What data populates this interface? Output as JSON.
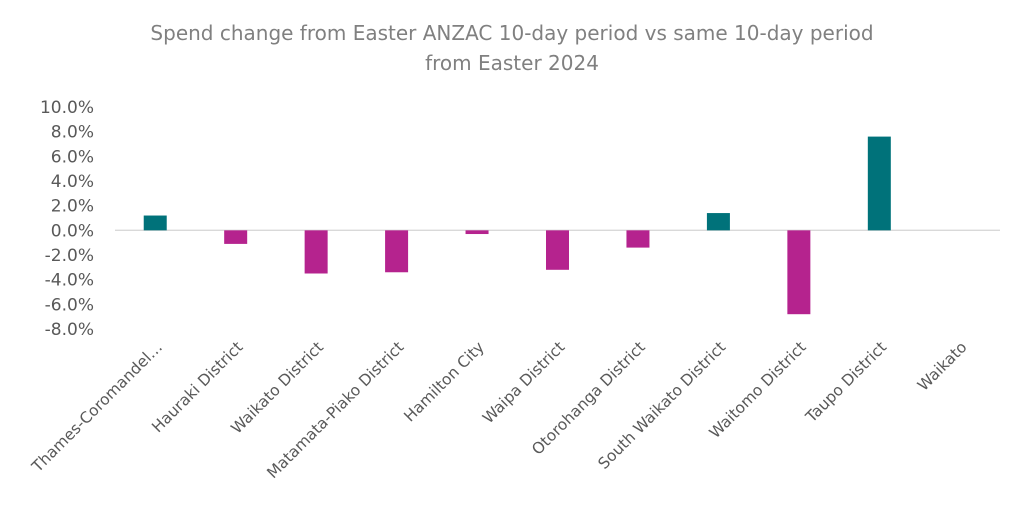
{
  "chart_data": {
    "type": "bar",
    "title_lines": [
      "Spend change from Easter ANZAC 10-day period vs same 10-day period",
      "from Easter 2024"
    ],
    "xlabel": "",
    "ylabel": "",
    "ylim": [
      -0.08,
      0.1
    ],
    "y_tick_labels": [
      "10.0%",
      "8.0%",
      "6.0%",
      "4.0%",
      "2.0%",
      "0.0%",
      "-2.0%",
      "-4.0%",
      "-6.0%",
      "-8.0%"
    ],
    "y_ticks": [
      0.1,
      0.08,
      0.06,
      0.04,
      0.02,
      0.0,
      -0.02,
      -0.04,
      -0.06,
      -0.08
    ],
    "grid": false,
    "legend": "none",
    "categories": [
      "Thames-Coromandel…",
      "Hauraki District",
      "Waikato District",
      "Matamata-Piako District",
      "Hamilton City",
      "Waipa District",
      "Otorohanga District",
      "South Waikato District",
      "Waitomo District",
      "Taupo District",
      "Waikato"
    ],
    "values": [
      0.012,
      -0.011,
      -0.035,
      -0.034,
      -0.003,
      -0.032,
      -0.014,
      0.014,
      -0.068,
      0.076,
      null
    ],
    "colors": {
      "positive": "#00727A",
      "negative": "#B5238E",
      "axis": "#D9D9D9"
    }
  }
}
